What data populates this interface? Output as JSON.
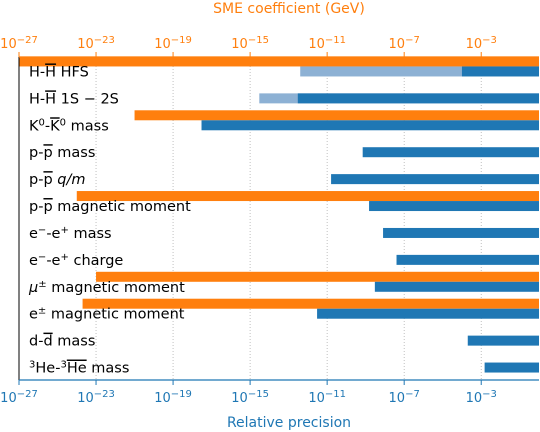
{
  "chart_data": {
    "type": "bar",
    "title": "",
    "x_scale": "log",
    "xlim": [
      1e-27,
      1
    ],
    "grid": "vertical dotted",
    "bottom_axis": {
      "label": "Relative precision",
      "color": "#1f77b4",
      "ticks": [
        {
          "value": 1e-27,
          "mantissa": "10",
          "exp": "−27"
        },
        {
          "value": 1e-23,
          "mantissa": "10",
          "exp": "−23"
        },
        {
          "value": 1e-19,
          "mantissa": "10",
          "exp": "−19"
        },
        {
          "value": 1e-15,
          "mantissa": "10",
          "exp": "−15"
        },
        {
          "value": 1e-11,
          "mantissa": "10",
          "exp": "−11"
        },
        {
          "value": 1e-07,
          "mantissa": "10",
          "exp": "−7"
        },
        {
          "value": 0.001,
          "mantissa": "10",
          "exp": "−3"
        }
      ]
    },
    "top_axis": {
      "label": "SME coefficient (GeV)",
      "color": "#ff7f0e",
      "ticks": [
        {
          "value": 1e-27,
          "mantissa": "10",
          "exp": "−27"
        },
        {
          "value": 1e-23,
          "mantissa": "10",
          "exp": "−23"
        },
        {
          "value": 1e-19,
          "mantissa": "10",
          "exp": "−19"
        },
        {
          "value": 1e-15,
          "mantissa": "10",
          "exp": "−15"
        },
        {
          "value": 1e-11,
          "mantissa": "10",
          "exp": "−11"
        },
        {
          "value": 1e-07,
          "mantissa": "10",
          "exp": "−7"
        },
        {
          "value": 0.001,
          "mantissa": "10",
          "exp": "−3"
        }
      ]
    },
    "series_colors": {
      "relative_precision": "#1f77b4",
      "relative_precision_light": "#8db1d4",
      "sme_coefficient": "#ff7f0e"
    },
    "rows": [
      {
        "label_parts": [
          {
            "t": "H-H",
            "style": "normal"
          },
          {
            "t": "",
            "style": "normal"
          },
          {
            "t": " HFS",
            "style": "normal"
          }
        ],
        "label": {
          "text": "H-H HFS",
          "overline_last_H": true
        },
        "orange": 1e-28,
        "blue": 0.0001,
        "blue_light": 4e-13
      },
      {
        "label": {
          "text": "H-H 1S − 2S",
          "overline_last_H": true
        },
        "orange": null,
        "blue": 3e-13,
        "blue_light": 3e-15
      },
      {
        "label": {
          "text": "K0-K0 mass"
        },
        "orange": 1e-21,
        "blue": 3e-18,
        "blue_light": null
      },
      {
        "label": {
          "text": "p-p mass"
        },
        "orange": null,
        "blue": 7e-10,
        "blue_light": null
      },
      {
        "label": {
          "text": "p-p q/m"
        },
        "orange": null,
        "blue": 1.6e-11,
        "blue_light": null
      },
      {
        "label": {
          "text": "p-p magnetic moment"
        },
        "orange": 1e-24,
        "blue": 1.5e-09,
        "blue_light": null
      },
      {
        "label": {
          "text": "e−-e+ mass"
        },
        "orange": null,
        "blue": 8e-09,
        "blue_light": null
      },
      {
        "label": {
          "text": "e−-e+ charge"
        },
        "orange": null,
        "blue": 4e-08,
        "blue_light": null
      },
      {
        "label": {
          "text": "μ± magnetic moment"
        },
        "orange": 1e-23,
        "blue": 3e-09,
        "blue_light": null
      },
      {
        "label": {
          "text": "e± magnetic moment"
        },
        "orange": 2e-24,
        "blue": 3e-12,
        "blue_light": null
      },
      {
        "label": {
          "text": "d-d mass"
        },
        "orange": null,
        "blue": 0.0002,
        "blue_light": null
      },
      {
        "label": {
          "text": "3He-3He mass"
        },
        "orange": null,
        "blue": 0.0015,
        "blue_light": null
      }
    ]
  }
}
